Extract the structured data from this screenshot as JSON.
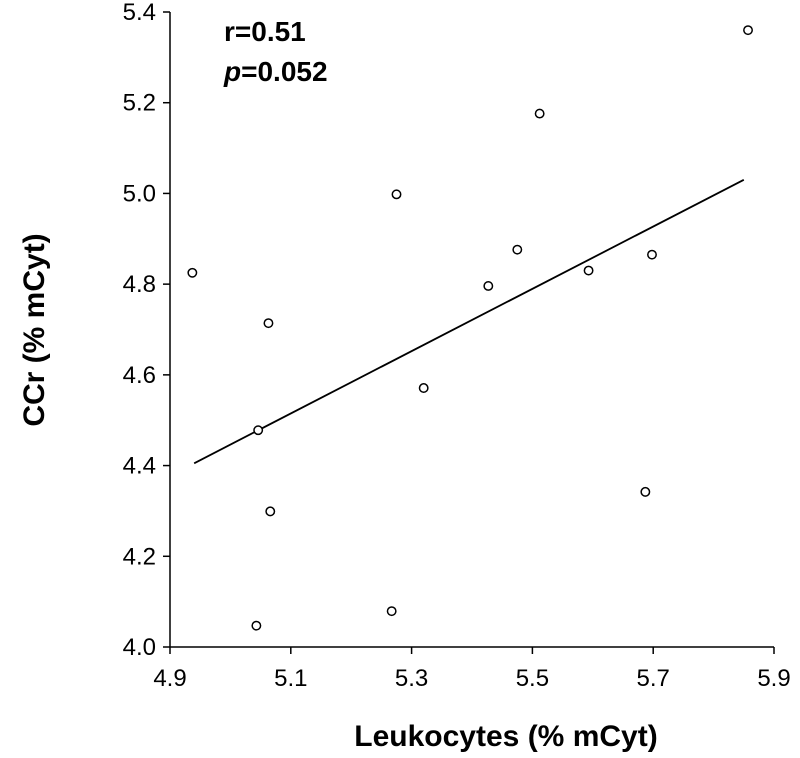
{
  "chart_data": {
    "type": "scatter",
    "xlabel": "Leukocytes (% mCyt)",
    "ylabel": "CCr (% mCyt)",
    "xlim": [
      4.9,
      5.9
    ],
    "ylim": [
      4.0,
      5.4
    ],
    "x_ticks": [
      "4.9",
      "5.1",
      "5.3",
      "5.5",
      "5.7",
      "5.9"
    ],
    "y_ticks": [
      "4.0",
      "4.2",
      "4.4",
      "4.6",
      "4.8",
      "5.0",
      "5.2",
      "5.4"
    ],
    "annotation": {
      "r_text": "r=0.51",
      "p_label": "p",
      "p_value": "=0.052"
    },
    "points": [
      {
        "x": 4.937,
        "y": 4.825
      },
      {
        "x": 5.043,
        "y": 4.047
      },
      {
        "x": 5.046,
        "y": 4.478
      },
      {
        "x": 5.063,
        "y": 4.714
      },
      {
        "x": 5.066,
        "y": 4.299
      },
      {
        "x": 5.267,
        "y": 4.079
      },
      {
        "x": 5.275,
        "y": 4.998
      },
      {
        "x": 5.32,
        "y": 4.571
      },
      {
        "x": 5.427,
        "y": 4.796
      },
      {
        "x": 5.475,
        "y": 4.876
      },
      {
        "x": 5.512,
        "y": 5.176
      },
      {
        "x": 5.593,
        "y": 4.83
      },
      {
        "x": 5.687,
        "y": 4.342
      },
      {
        "x": 5.698,
        "y": 4.865
      },
      {
        "x": 5.857,
        "y": 5.36
      }
    ],
    "trendline": {
      "x": [
        4.94,
        5.85
      ],
      "y": [
        4.405,
        5.03
      ]
    },
    "grid": false,
    "legend": "none"
  }
}
